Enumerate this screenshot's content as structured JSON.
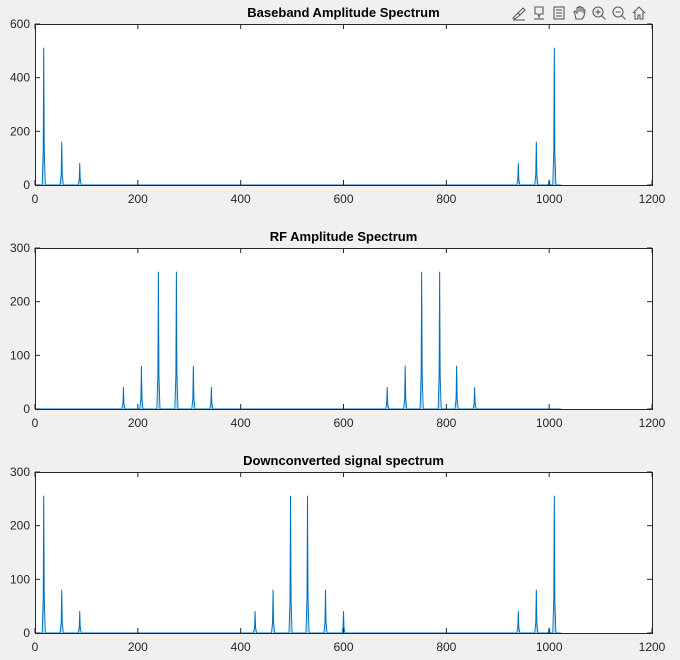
{
  "toolbar": {
    "icons": [
      "export-brush-icon",
      "data-tip-icon",
      "data-brush-icon",
      "pan-hand-icon",
      "zoom-in-icon",
      "zoom-out-icon",
      "home-icon"
    ]
  },
  "colors": {
    "figure_background": "#f0f0f0",
    "axes_background": "#ffffff",
    "series": "#0072bd",
    "axis_color": "#262626"
  },
  "chart_data": [
    {
      "type": "line",
      "title": "Baseband Amplitude Spectrum",
      "xlabel": "",
      "ylabel": "",
      "xlim": [
        0,
        1200
      ],
      "ylim": [
        0,
        600
      ],
      "xticks": [
        0,
        200,
        400,
        600,
        800,
        1000,
        1200
      ],
      "yticks": [
        0,
        200,
        400,
        600
      ],
      "xtick_labels": [
        "0",
        "200",
        "400",
        "600",
        "800",
        "1000",
        "1200"
      ],
      "ytick_labels": [
        "0",
        "200",
        "400",
        "600"
      ],
      "peak_halfwidth": 3,
      "baseline": 0,
      "peaks": [
        {
          "x": 17,
          "y": 510
        },
        {
          "x": 52,
          "y": 160
        },
        {
          "x": 87,
          "y": 80
        },
        {
          "x": 940,
          "y": 80
        },
        {
          "x": 975,
          "y": 160
        },
        {
          "x": 1000,
          "y": 18
        },
        {
          "x": 1010,
          "y": 510
        }
      ]
    },
    {
      "type": "line",
      "title": "RF Amplitude Spectrum",
      "xlabel": "",
      "ylabel": "",
      "xlim": [
        0,
        1200
      ],
      "ylim": [
        0,
        300
      ],
      "xticks": [
        0,
        200,
        400,
        600,
        800,
        1000,
        1200
      ],
      "yticks": [
        0,
        100,
        200,
        300
      ],
      "xtick_labels": [
        "0",
        "200",
        "400",
        "600",
        "800",
        "1000",
        "1200"
      ],
      "ytick_labels": [
        "0",
        "100",
        "200",
        "300"
      ],
      "peak_halfwidth": 3,
      "baseline": 0,
      "peaks": [
        {
          "x": 172,
          "y": 40
        },
        {
          "x": 207,
          "y": 80
        },
        {
          "x": 240,
          "y": 255
        },
        {
          "x": 275,
          "y": 255
        },
        {
          "x": 308,
          "y": 80
        },
        {
          "x": 343,
          "y": 40
        },
        {
          "x": 685,
          "y": 40
        },
        {
          "x": 720,
          "y": 80
        },
        {
          "x": 752,
          "y": 255
        },
        {
          "x": 787,
          "y": 255
        },
        {
          "x": 820,
          "y": 80
        },
        {
          "x": 855,
          "y": 40
        }
      ]
    },
    {
      "type": "line",
      "title": "Downconverted signal spectrum",
      "xlabel": "",
      "ylabel": "",
      "xlim": [
        0,
        1200
      ],
      "ylim": [
        0,
        300
      ],
      "xticks": [
        0,
        200,
        400,
        600,
        800,
        1000,
        1200
      ],
      "yticks": [
        0,
        100,
        200,
        300
      ],
      "xtick_labels": [
        "0",
        "200",
        "400",
        "600",
        "800",
        "1000",
        "1200"
      ],
      "ytick_labels": [
        "0",
        "100",
        "200",
        "300"
      ],
      "peak_halfwidth": 3,
      "baseline": 0,
      "peaks": [
        {
          "x": 17,
          "y": 255
        },
        {
          "x": 52,
          "y": 80
        },
        {
          "x": 87,
          "y": 40
        },
        {
          "x": 428,
          "y": 40
        },
        {
          "x": 463,
          "y": 80
        },
        {
          "x": 497,
          "y": 255
        },
        {
          "x": 530,
          "y": 255
        },
        {
          "x": 565,
          "y": 80
        },
        {
          "x": 600,
          "y": 40
        },
        {
          "x": 940,
          "y": 40
        },
        {
          "x": 975,
          "y": 80
        },
        {
          "x": 1000,
          "y": 9
        },
        {
          "x": 1010,
          "y": 255
        }
      ]
    }
  ]
}
